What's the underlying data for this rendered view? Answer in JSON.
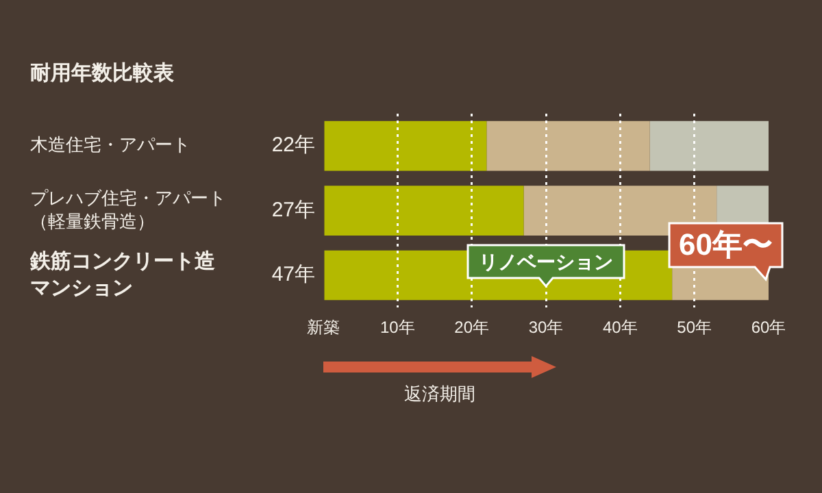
{
  "chart_data": {
    "type": "bar",
    "orientation": "horizontal",
    "stacked": true,
    "title": "耐用年数比較表",
    "categories": [
      "木造住宅・アパート",
      "プレハブ住宅・アパート（軽量鉄骨造）",
      "鉄筋コンクリート造マンション"
    ],
    "series": [
      {
        "color": "#b4b900",
        "values": [
          22,
          27,
          47
        ],
        "value_labels": [
          "22年",
          "27年",
          "47年"
        ]
      },
      {
        "color": "#cbb48d",
        "values": [
          22,
          26,
          13
        ]
      },
      {
        "color": "#c3c4b4",
        "values": [
          16,
          7,
          null
        ]
      }
    ],
    "xlim": [
      0,
      60
    ],
    "xticks": [
      {
        "value": 0,
        "label": "新築"
      },
      {
        "value": 10,
        "label": "10年"
      },
      {
        "value": 20,
        "label": "20年"
      },
      {
        "value": 30,
        "label": "30年"
      },
      {
        "value": 40,
        "label": "40年"
      },
      {
        "value": 50,
        "label": "50年"
      },
      {
        "value": 60,
        "label": "60年"
      }
    ],
    "grid": "x",
    "legend": false,
    "annotations": [
      {
        "text": "リノベーション",
        "x": 30,
        "y": "鉄筋コンクリート造マンション"
      },
      {
        "text": "60年〜",
        "x": 60,
        "y": "鉄筋コンクリート造マンション"
      },
      "返済期間"
    ]
  }
}
